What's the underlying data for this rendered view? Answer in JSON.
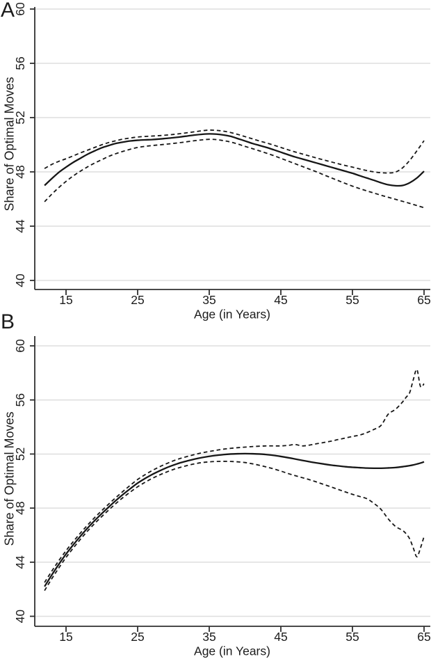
{
  "figure": {
    "panels": [
      {
        "letter": "A"
      },
      {
        "letter": "B"
      }
    ]
  },
  "colors": {
    "line": "#161616",
    "axis": "#2f2f2f",
    "grid": "#dedede",
    "background": "#ffffff"
  },
  "chart_data": [
    {
      "type": "line",
      "panel": "A",
      "xlabel": "Age (in Years)",
      "ylabel": "Share of Optimal Moves",
      "xticks": [
        15,
        25,
        35,
        45,
        55,
        65
      ],
      "yticks": [
        40,
        44,
        48,
        52,
        56,
        60
      ],
      "xlim": [
        10.6,
        65.9
      ],
      "ylim": [
        39.3,
        60.2
      ],
      "grid": "horizontal",
      "legend": "none",
      "series": [
        {
          "name": "estimate",
          "style": "solid",
          "x": [
            12,
            13,
            14,
            15,
            16,
            17,
            18,
            19,
            20,
            21,
            22,
            23,
            24,
            25,
            26,
            27,
            28,
            29,
            30,
            31,
            32,
            33,
            34,
            35,
            36,
            37,
            38,
            39,
            40,
            41,
            42,
            43,
            44,
            45,
            46,
            47,
            48,
            49,
            50,
            51,
            52,
            53,
            54,
            55,
            56,
            57,
            58,
            59,
            60,
            61,
            62,
            63,
            64,
            65
          ],
          "y": [
            47.0,
            47.5,
            47.97,
            48.35,
            48.7,
            49.0,
            49.3,
            49.55,
            49.78,
            49.95,
            50.1,
            50.2,
            50.28,
            50.33,
            50.36,
            50.38,
            50.42,
            50.47,
            50.52,
            50.58,
            50.65,
            50.72,
            50.77,
            50.8,
            50.78,
            50.72,
            50.62,
            50.45,
            50.28,
            50.1,
            49.95,
            49.8,
            49.63,
            49.45,
            49.27,
            49.1,
            48.95,
            48.8,
            48.65,
            48.5,
            48.35,
            48.2,
            48.05,
            47.9,
            47.72,
            47.55,
            47.38,
            47.2,
            47.05,
            46.98,
            47.0,
            47.2,
            47.55,
            48.05
          ]
        },
        {
          "name": "upper confidence band",
          "style": "dashed",
          "x": [
            12,
            13,
            14,
            15,
            16,
            17,
            18,
            19,
            20,
            21,
            22,
            23,
            24,
            25,
            26,
            27,
            28,
            29,
            30,
            31,
            32,
            33,
            34,
            35,
            36,
            37,
            38,
            39,
            40,
            41,
            42,
            43,
            44,
            45,
            46,
            47,
            48,
            49,
            50,
            51,
            52,
            53,
            54,
            55,
            56,
            57,
            58,
            59,
            60,
            61,
            62,
            63,
            64,
            65
          ],
          "y": [
            48.25,
            48.55,
            48.78,
            48.97,
            49.18,
            49.4,
            49.6,
            49.8,
            50.0,
            50.17,
            50.3,
            50.42,
            50.5,
            50.57,
            50.61,
            50.64,
            50.67,
            50.71,
            50.76,
            50.82,
            50.89,
            50.96,
            51.03,
            51.08,
            51.06,
            51.0,
            50.9,
            50.76,
            50.6,
            50.44,
            50.28,
            50.13,
            49.97,
            49.8,
            49.63,
            49.47,
            49.32,
            49.17,
            49.02,
            48.88,
            48.74,
            48.6,
            48.47,
            48.35,
            48.22,
            48.1,
            48.0,
            47.94,
            47.92,
            47.98,
            48.3,
            48.85,
            49.55,
            50.3
          ]
        },
        {
          "name": "lower confidence band",
          "style": "dashed",
          "x": [
            12,
            13,
            14,
            15,
            16,
            17,
            18,
            19,
            20,
            21,
            22,
            23,
            24,
            25,
            26,
            27,
            28,
            29,
            30,
            31,
            32,
            33,
            34,
            35,
            36,
            37,
            38,
            39,
            40,
            41,
            42,
            43,
            44,
            45,
            46,
            47,
            48,
            49,
            50,
            51,
            52,
            53,
            54,
            55,
            56,
            57,
            58,
            59,
            60,
            61,
            62,
            63,
            64,
            65
          ],
          "y": [
            45.8,
            46.35,
            46.85,
            47.3,
            47.7,
            48.05,
            48.37,
            48.65,
            48.9,
            49.15,
            49.35,
            49.52,
            49.67,
            49.8,
            49.88,
            49.94,
            49.99,
            50.04,
            50.1,
            50.16,
            50.23,
            50.3,
            50.36,
            50.4,
            50.38,
            50.3,
            50.2,
            50.05,
            49.88,
            49.72,
            49.55,
            49.38,
            49.2,
            49.0,
            48.8,
            48.6,
            48.4,
            48.2,
            48.0,
            47.78,
            47.57,
            47.36,
            47.15,
            46.95,
            46.77,
            46.6,
            46.44,
            46.28,
            46.13,
            45.98,
            45.83,
            45.68,
            45.52,
            45.36
          ]
        }
      ]
    },
    {
      "type": "line",
      "panel": "B",
      "xlabel": "Age (in Years)",
      "ylabel": "Share of Optimal Moves",
      "xticks": [
        15,
        25,
        35,
        45,
        55,
        65
      ],
      "yticks": [
        40,
        44,
        48,
        52,
        56,
        60
      ],
      "xlim": [
        10.6,
        65.9
      ],
      "ylim": [
        39.2,
        60.7
      ],
      "grid": "horizontal",
      "legend": "none",
      "series": [
        {
          "name": "estimate",
          "style": "solid",
          "x": [
            12,
            13,
            14,
            15,
            16,
            17,
            18,
            19,
            20,
            21,
            22,
            23,
            24,
            25,
            26,
            27,
            28,
            29,
            30,
            31,
            32,
            33,
            34,
            35,
            36,
            37,
            38,
            39,
            40,
            41,
            42,
            43,
            44,
            45,
            46,
            47,
            48,
            49,
            50,
            51,
            52,
            53,
            54,
            55,
            56,
            57,
            58,
            59,
            60,
            61,
            62,
            62.5,
            63,
            63.5,
            64,
            64.5,
            65
          ],
          "y": [
            42.2,
            43.05,
            43.85,
            44.6,
            45.28,
            45.92,
            46.52,
            47.08,
            47.6,
            48.1,
            48.58,
            49.03,
            49.45,
            49.85,
            50.18,
            50.48,
            50.74,
            50.98,
            51.18,
            51.36,
            51.5,
            51.63,
            51.74,
            51.83,
            51.9,
            51.96,
            52.0,
            52.02,
            52.03,
            52.02,
            52.0,
            51.96,
            51.9,
            51.82,
            51.73,
            51.63,
            51.53,
            51.43,
            51.34,
            51.26,
            51.18,
            51.12,
            51.06,
            51.02,
            50.99,
            50.96,
            50.95,
            50.95,
            50.97,
            51.0,
            51.06,
            51.1,
            51.14,
            51.19,
            51.26,
            51.33,
            51.42
          ]
        },
        {
          "name": "upper confidence band",
          "style": "dashed",
          "x": [
            12,
            13,
            14,
            15,
            16,
            17,
            18,
            19,
            20,
            21,
            22,
            23,
            24,
            25,
            26,
            27,
            28,
            29,
            30,
            31,
            32,
            33,
            34,
            35,
            36,
            37,
            38,
            39,
            40,
            41,
            42,
            43,
            44,
            45,
            46,
            47,
            48,
            49,
            50,
            51,
            52,
            53,
            54,
            55,
            56,
            57,
            58,
            59,
            60,
            61,
            62,
            62.5,
            63,
            63.5,
            64,
            64.5,
            65
          ],
          "y": [
            42.5,
            43.33,
            44.12,
            44.85,
            45.52,
            46.15,
            46.74,
            47.3,
            47.82,
            48.32,
            48.8,
            49.26,
            49.7,
            50.12,
            50.46,
            50.77,
            51.04,
            51.28,
            51.5,
            51.68,
            51.83,
            51.97,
            52.09,
            52.19,
            52.28,
            52.36,
            52.42,
            52.47,
            52.51,
            52.55,
            52.58,
            52.6,
            52.6,
            52.6,
            52.64,
            52.7,
            52.6,
            52.66,
            52.76,
            52.85,
            52.95,
            53.07,
            53.18,
            53.3,
            53.4,
            53.58,
            53.82,
            54.12,
            54.95,
            55.3,
            55.85,
            56.2,
            56.55,
            57.5,
            58.25,
            57.0,
            57.2
          ]
        },
        {
          "name": "lower confidence band",
          "style": "dashed",
          "x": [
            12,
            13,
            14,
            15,
            16,
            17,
            18,
            19,
            20,
            21,
            22,
            23,
            24,
            25,
            26,
            27,
            28,
            29,
            30,
            31,
            32,
            33,
            34,
            35,
            36,
            37,
            38,
            39,
            40,
            41,
            42,
            43,
            44,
            45,
            46,
            47,
            48,
            49,
            50,
            51,
            52,
            53,
            54,
            55,
            56,
            57,
            58,
            59,
            60,
            61,
            62,
            62.5,
            63,
            63.5,
            64,
            64.5,
            65
          ],
          "y": [
            41.9,
            42.77,
            43.58,
            44.35,
            45.04,
            45.69,
            46.3,
            46.86,
            47.38,
            47.88,
            48.36,
            48.8,
            49.2,
            49.58,
            49.9,
            50.19,
            50.44,
            50.66,
            50.86,
            51.02,
            51.16,
            51.28,
            51.37,
            51.42,
            51.45,
            51.46,
            51.45,
            51.42,
            51.37,
            51.28,
            51.17,
            51.04,
            50.9,
            50.74,
            50.56,
            50.4,
            50.25,
            50.1,
            49.93,
            49.75,
            49.57,
            49.38,
            49.2,
            49.02,
            48.86,
            48.7,
            48.35,
            47.9,
            47.2,
            46.65,
            46.35,
            46.1,
            45.72,
            45.05,
            44.4,
            45.05,
            45.9
          ]
        }
      ]
    }
  ]
}
